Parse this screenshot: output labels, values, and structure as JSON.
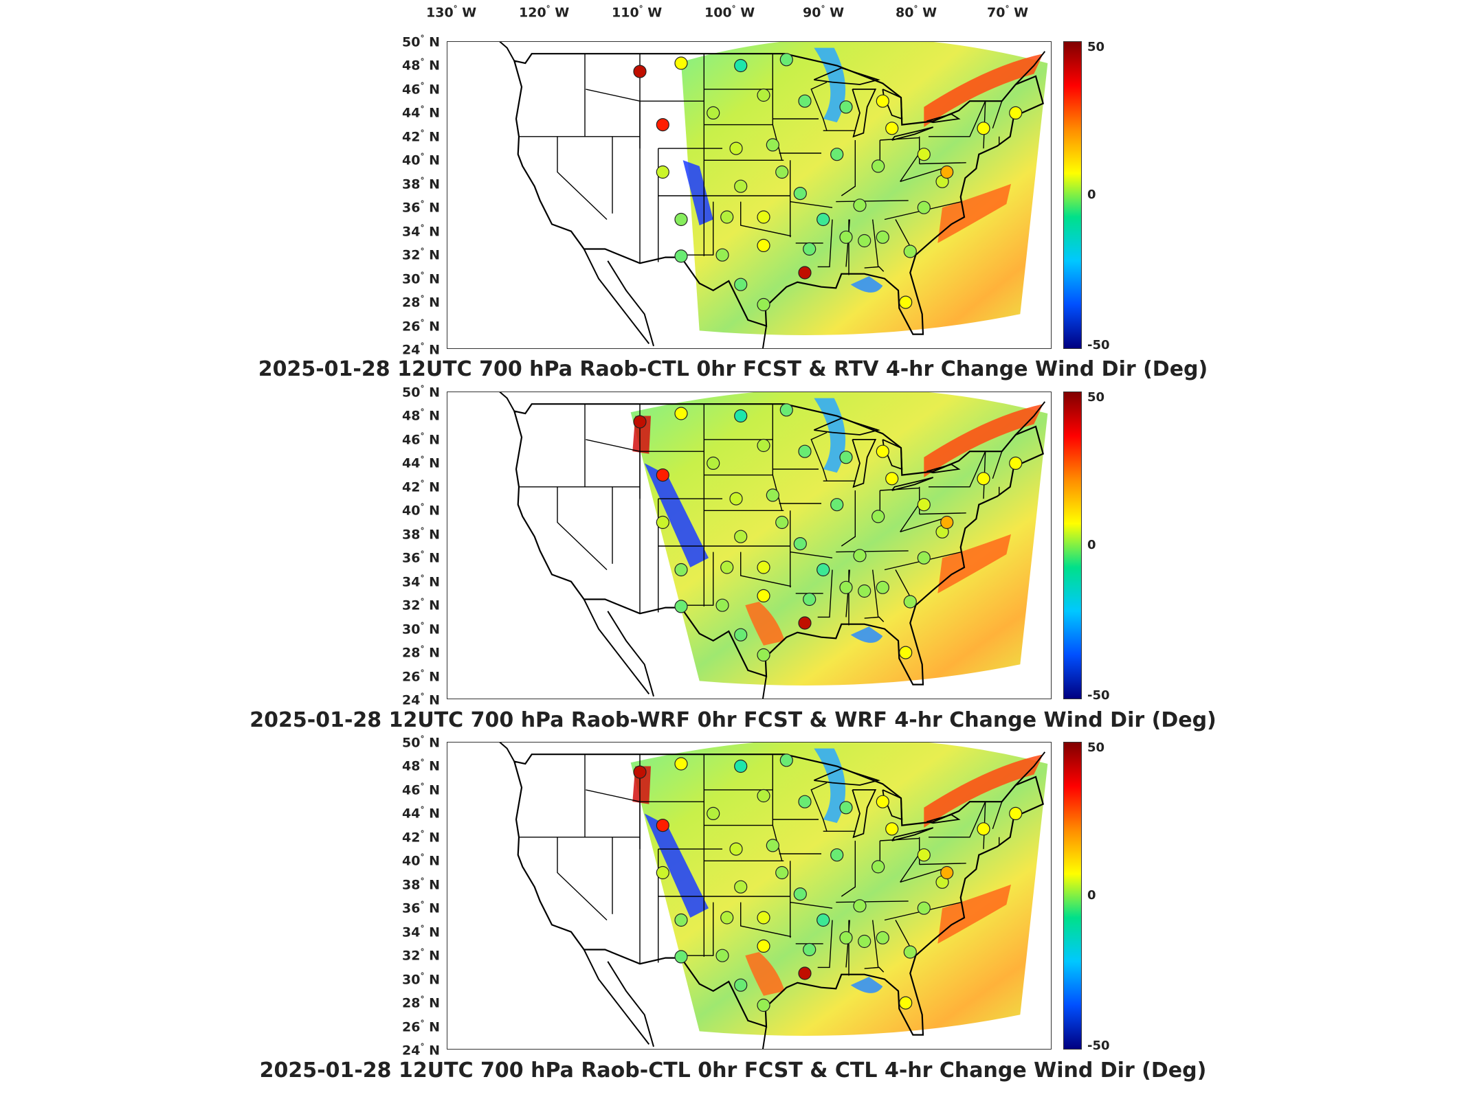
{
  "lon_labels": [
    "130",
    "120",
    "110",
    "100",
    "90",
    "80",
    "70"
  ],
  "lon_suffix": "W",
  "lat_labels": [
    "50",
    "48",
    "46",
    "44",
    "42",
    "40",
    "38",
    "36",
    "34",
    "32",
    "30",
    "28",
    "26",
    "24"
  ],
  "lat_suffix": "N",
  "colorbar": {
    "max": "50",
    "mid": "0",
    "min": "-50",
    "colors": [
      "#800000",
      "#ff0000",
      "#ff8c00",
      "#ffff00",
      "#00e08a",
      "#00c8ff",
      "#0050ff",
      "#000080"
    ]
  },
  "panels": [
    {
      "title": "2025-01-28 12UTC 700 hPa Raob-CTL 0hr FCST & RTV 4-hr Change Wind Dir (Deg)"
    },
    {
      "title": "2025-01-28 12UTC 700 hPa Raob-WRF 0hr FCST & WRF 4-hr Change Wind Dir (Deg)"
    },
    {
      "title": "2025-01-28 12UTC 700 hPa Raob-CTL 0hr FCST & CTL 4-hr Change Wind Dir (Deg)"
    }
  ],
  "chart_data": [
    {
      "type": "heatmap",
      "title": "2025-01-28 12UTC 700 hPa Raob-CTL 0hr FCST & RTV 4-hr Change Wind Dir (Deg)",
      "x_axis": "longitude (W)",
      "xlim": [
        -132,
        -66
      ],
      "y_axis": "latitude (N)",
      "ylim": [
        24,
        50
      ],
      "colorbar_range": [
        -50,
        50
      ],
      "raob_stations": [
        {
          "lon": -111,
          "lat": 47.5,
          "value": 45
        },
        {
          "lon": -108.5,
          "lat": 43.0,
          "value": 40
        },
        {
          "lon": -106.5,
          "lat": 48.2,
          "value": 15
        },
        {
          "lon": -108.5,
          "lat": 39.0,
          "value": 8
        },
        {
          "lon": -106.5,
          "lat": 35.0,
          "value": 2
        },
        {
          "lon": -106.5,
          "lat": 31.9,
          "value": 0
        },
        {
          "lon": -100.0,
          "lat": 48.0,
          "value": -5
        },
        {
          "lon": -103.0,
          "lat": 44.0,
          "value": 5
        },
        {
          "lon": -97.5,
          "lat": 45.5,
          "value": 5
        },
        {
          "lon": -100.5,
          "lat": 41.0,
          "value": 8
        },
        {
          "lon": -96.5,
          "lat": 41.3,
          "value": 3
        },
        {
          "lon": -100.0,
          "lat": 37.8,
          "value": 5
        },
        {
          "lon": -95.5,
          "lat": 39.0,
          "value": 3
        },
        {
          "lon": -101.5,
          "lat": 35.2,
          "value": 5
        },
        {
          "lon": -97.5,
          "lat": 35.2,
          "value": 12
        },
        {
          "lon": -102.0,
          "lat": 32.0,
          "value": 3
        },
        {
          "lon": -97.5,
          "lat": 32.8,
          "value": 15
        },
        {
          "lon": -100.0,
          "lat": 29.5,
          "value": 0
        },
        {
          "lon": -97.5,
          "lat": 27.8,
          "value": 3
        },
        {
          "lon": -93.0,
          "lat": 30.5,
          "value": 45
        },
        {
          "lon": -92.5,
          "lat": 32.5,
          "value": 0
        },
        {
          "lon": -93.5,
          "lat": 37.2,
          "value": 0
        },
        {
          "lon": -91.0,
          "lat": 35.0,
          "value": -3
        },
        {
          "lon": -93.0,
          "lat": 45.0,
          "value": 0
        },
        {
          "lon": -89.5,
          "lat": 40.5,
          "value": 0
        },
        {
          "lon": -88.5,
          "lat": 44.5,
          "value": 0
        },
        {
          "lon": -84.5,
          "lat": 45.0,
          "value": 15
        },
        {
          "lon": -83.5,
          "lat": 42.7,
          "value": 15
        },
        {
          "lon": -85.0,
          "lat": 39.5,
          "value": 3
        },
        {
          "lon": -87.0,
          "lat": 36.2,
          "value": 3
        },
        {
          "lon": -88.5,
          "lat": 33.5,
          "value": 3
        },
        {
          "lon": -86.5,
          "lat": 33.2,
          "value": 3
        },
        {
          "lon": -84.5,
          "lat": 33.5,
          "value": 3
        },
        {
          "lon": -81.5,
          "lat": 32.3,
          "value": 3
        },
        {
          "lon": -80.0,
          "lat": 36.0,
          "value": 3
        },
        {
          "lon": -80.0,
          "lat": 40.5,
          "value": 10
        },
        {
          "lon": -78.0,
          "lat": 38.2,
          "value": 8
        },
        {
          "lon": -77.5,
          "lat": 39.0,
          "value": 25
        },
        {
          "lon": -73.5,
          "lat": 42.7,
          "value": 15
        },
        {
          "lon": -70.0,
          "lat": 44.0,
          "value": 15
        },
        {
          "lon": -82.0,
          "lat": 28.0,
          "value": 15
        },
        {
          "lon": -95.0,
          "lat": 48.5,
          "value": 0
        }
      ]
    },
    {
      "type": "heatmap",
      "title": "2025-01-28 12UTC 700 hPa Raob-WRF 0hr FCST & WRF 4-hr Change Wind Dir (Deg)",
      "x_axis": "longitude (W)",
      "xlim": [
        -132,
        -66
      ],
      "y_axis": "latitude (N)",
      "ylim": [
        24,
        50
      ],
      "colorbar_range": [
        -50,
        50
      ],
      "raob_stations": [
        {
          "lon": -111,
          "lat": 47.5,
          "value": 45
        },
        {
          "lon": -108.5,
          "lat": 43.0,
          "value": 40
        },
        {
          "lon": -106.5,
          "lat": 48.2,
          "value": 15
        },
        {
          "lon": -108.5,
          "lat": 39.0,
          "value": 8
        },
        {
          "lon": -106.5,
          "lat": 35.0,
          "value": 2
        },
        {
          "lon": -106.5,
          "lat": 31.9,
          "value": 0
        },
        {
          "lon": -100.0,
          "lat": 48.0,
          "value": -5
        },
        {
          "lon": -103.0,
          "lat": 44.0,
          "value": 5
        },
        {
          "lon": -97.5,
          "lat": 45.5,
          "value": 5
        },
        {
          "lon": -100.5,
          "lat": 41.0,
          "value": 8
        },
        {
          "lon": -96.5,
          "lat": 41.3,
          "value": 3
        },
        {
          "lon": -100.0,
          "lat": 37.8,
          "value": 5
        },
        {
          "lon": -95.5,
          "lat": 39.0,
          "value": 3
        },
        {
          "lon": -101.5,
          "lat": 35.2,
          "value": 5
        },
        {
          "lon": -97.5,
          "lat": 35.2,
          "value": 12
        },
        {
          "lon": -102.0,
          "lat": 32.0,
          "value": 3
        },
        {
          "lon": -97.5,
          "lat": 32.8,
          "value": 15
        },
        {
          "lon": -100.0,
          "lat": 29.5,
          "value": 0
        },
        {
          "lon": -97.5,
          "lat": 27.8,
          "value": 3
        },
        {
          "lon": -93.0,
          "lat": 30.5,
          "value": 45
        },
        {
          "lon": -92.5,
          "lat": 32.5,
          "value": 0
        },
        {
          "lon": -93.5,
          "lat": 37.2,
          "value": 0
        },
        {
          "lon": -91.0,
          "lat": 35.0,
          "value": -3
        },
        {
          "lon": -93.0,
          "lat": 45.0,
          "value": 0
        },
        {
          "lon": -89.5,
          "lat": 40.5,
          "value": 0
        },
        {
          "lon": -88.5,
          "lat": 44.5,
          "value": 0
        },
        {
          "lon": -84.5,
          "lat": 45.0,
          "value": 15
        },
        {
          "lon": -83.5,
          "lat": 42.7,
          "value": 15
        },
        {
          "lon": -85.0,
          "lat": 39.5,
          "value": 3
        },
        {
          "lon": -87.0,
          "lat": 36.2,
          "value": 3
        },
        {
          "lon": -88.5,
          "lat": 33.5,
          "value": 3
        },
        {
          "lon": -86.5,
          "lat": 33.2,
          "value": 3
        },
        {
          "lon": -84.5,
          "lat": 33.5,
          "value": 3
        },
        {
          "lon": -81.5,
          "lat": 32.3,
          "value": 3
        },
        {
          "lon": -80.0,
          "lat": 36.0,
          "value": 3
        },
        {
          "lon": -80.0,
          "lat": 40.5,
          "value": 10
        },
        {
          "lon": -78.0,
          "lat": 38.2,
          "value": 8
        },
        {
          "lon": -77.5,
          "lat": 39.0,
          "value": 25
        },
        {
          "lon": -73.5,
          "lat": 42.7,
          "value": 15
        },
        {
          "lon": -70.0,
          "lat": 44.0,
          "value": 15
        },
        {
          "lon": -82.0,
          "lat": 28.0,
          "value": 15
        },
        {
          "lon": -95.0,
          "lat": 48.5,
          "value": 0
        }
      ]
    },
    {
      "type": "heatmap",
      "title": "2025-01-28 12UTC 700 hPa Raob-CTL 0hr FCST & CTL 4-hr Change Wind Dir (Deg)",
      "x_axis": "longitude (W)",
      "xlim": [
        -132,
        -66
      ],
      "y_axis": "latitude (N)",
      "ylim": [
        24,
        50
      ],
      "colorbar_range": [
        -50,
        50
      ],
      "raob_stations": [
        {
          "lon": -111,
          "lat": 47.5,
          "value": 45
        },
        {
          "lon": -108.5,
          "lat": 43.0,
          "value": 40
        },
        {
          "lon": -106.5,
          "lat": 48.2,
          "value": 15
        },
        {
          "lon": -108.5,
          "lat": 39.0,
          "value": 8
        },
        {
          "lon": -106.5,
          "lat": 35.0,
          "value": 2
        },
        {
          "lon": -106.5,
          "lat": 31.9,
          "value": 0
        },
        {
          "lon": -100.0,
          "lat": 48.0,
          "value": -5
        },
        {
          "lon": -103.0,
          "lat": 44.0,
          "value": 5
        },
        {
          "lon": -97.5,
          "lat": 45.5,
          "value": 5
        },
        {
          "lon": -100.5,
          "lat": 41.0,
          "value": 8
        },
        {
          "lon": -96.5,
          "lat": 41.3,
          "value": 3
        },
        {
          "lon": -100.0,
          "lat": 37.8,
          "value": 5
        },
        {
          "lon": -95.5,
          "lat": 39.0,
          "value": 3
        },
        {
          "lon": -101.5,
          "lat": 35.2,
          "value": 5
        },
        {
          "lon": -97.5,
          "lat": 35.2,
          "value": 12
        },
        {
          "lon": -102.0,
          "lat": 32.0,
          "value": 3
        },
        {
          "lon": -97.5,
          "lat": 32.8,
          "value": 15
        },
        {
          "lon": -100.0,
          "lat": 29.5,
          "value": 0
        },
        {
          "lon": -97.5,
          "lat": 27.8,
          "value": 3
        },
        {
          "lon": -93.0,
          "lat": 30.5,
          "value": 45
        },
        {
          "lon": -92.5,
          "lat": 32.5,
          "value": 0
        },
        {
          "lon": -93.5,
          "lat": 37.2,
          "value": 0
        },
        {
          "lon": -91.0,
          "lat": 35.0,
          "value": -3
        },
        {
          "lon": -93.0,
          "lat": 45.0,
          "value": 0
        },
        {
          "lon": -89.5,
          "lat": 40.5,
          "value": 0
        },
        {
          "lon": -88.5,
          "lat": 44.5,
          "value": 0
        },
        {
          "lon": -84.5,
          "lat": 45.0,
          "value": 15
        },
        {
          "lon": -83.5,
          "lat": 42.7,
          "value": 15
        },
        {
          "lon": -85.0,
          "lat": 39.5,
          "value": 3
        },
        {
          "lon": -87.0,
          "lat": 36.2,
          "value": 3
        },
        {
          "lon": -88.5,
          "lat": 33.5,
          "value": 3
        },
        {
          "lon": -86.5,
          "lat": 33.2,
          "value": 3
        },
        {
          "lon": -84.5,
          "lat": 33.5,
          "value": 3
        },
        {
          "lon": -81.5,
          "lat": 32.3,
          "value": 3
        },
        {
          "lon": -80.0,
          "lat": 36.0,
          "value": 3
        },
        {
          "lon": -80.0,
          "lat": 40.5,
          "value": 10
        },
        {
          "lon": -78.0,
          "lat": 38.2,
          "value": 8
        },
        {
          "lon": -77.5,
          "lat": 39.0,
          "value": 25
        },
        {
          "lon": -73.5,
          "lat": 42.7,
          "value": 15
        },
        {
          "lon": -70.0,
          "lat": 44.0,
          "value": 15
        },
        {
          "lon": -82.0,
          "lat": 28.0,
          "value": 15
        },
        {
          "lon": -95.0,
          "lat": 48.5,
          "value": 0
        }
      ]
    }
  ]
}
